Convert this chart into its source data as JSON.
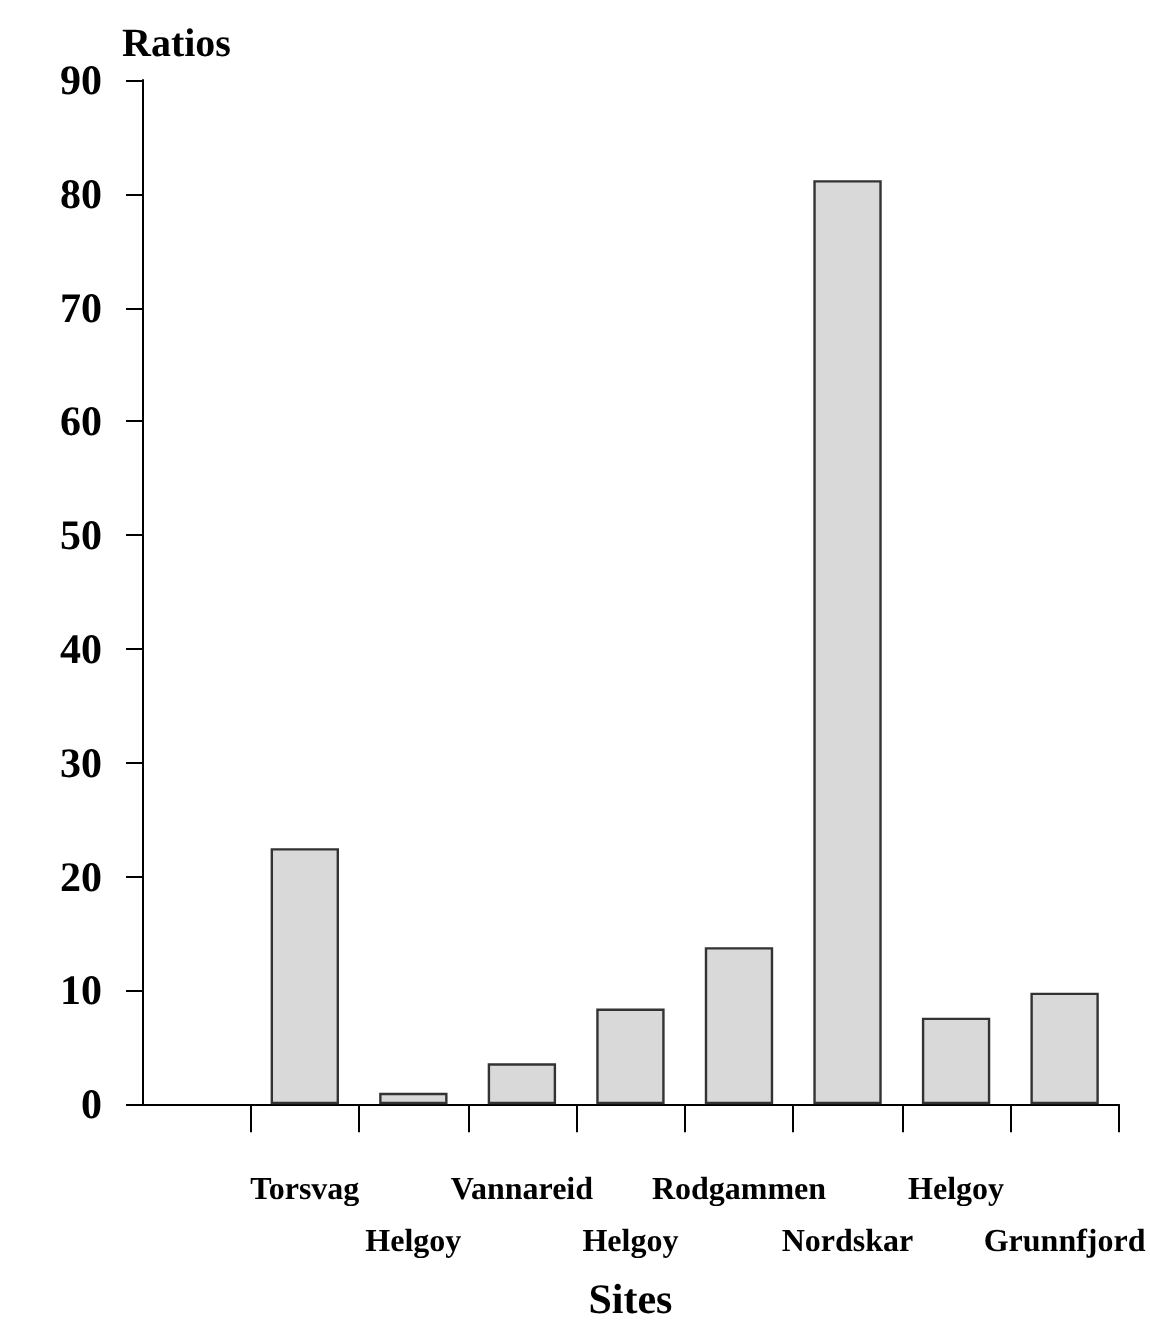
{
  "chart_data": {
    "type": "bar",
    "xlabel": "Sites",
    "ylabel": "Ratios",
    "categories": [
      null,
      "Torsvag",
      "Helgoy",
      "Vannareid",
      "Helgoy",
      "Rodgammen",
      "Nordskar",
      "Helgoy",
      "Grunnfjord"
    ],
    "values": [
      null,
      22.5,
      1.0,
      3.6,
      8.4,
      13.8,
      81.2,
      7.6,
      9.8
    ],
    "color": "#d9d9d9",
    "ylim": [
      0,
      90
    ],
    "yticks": [
      0,
      10,
      20,
      30,
      40,
      50,
      60,
      70,
      80,
      90
    ],
    "grid": false
  }
}
